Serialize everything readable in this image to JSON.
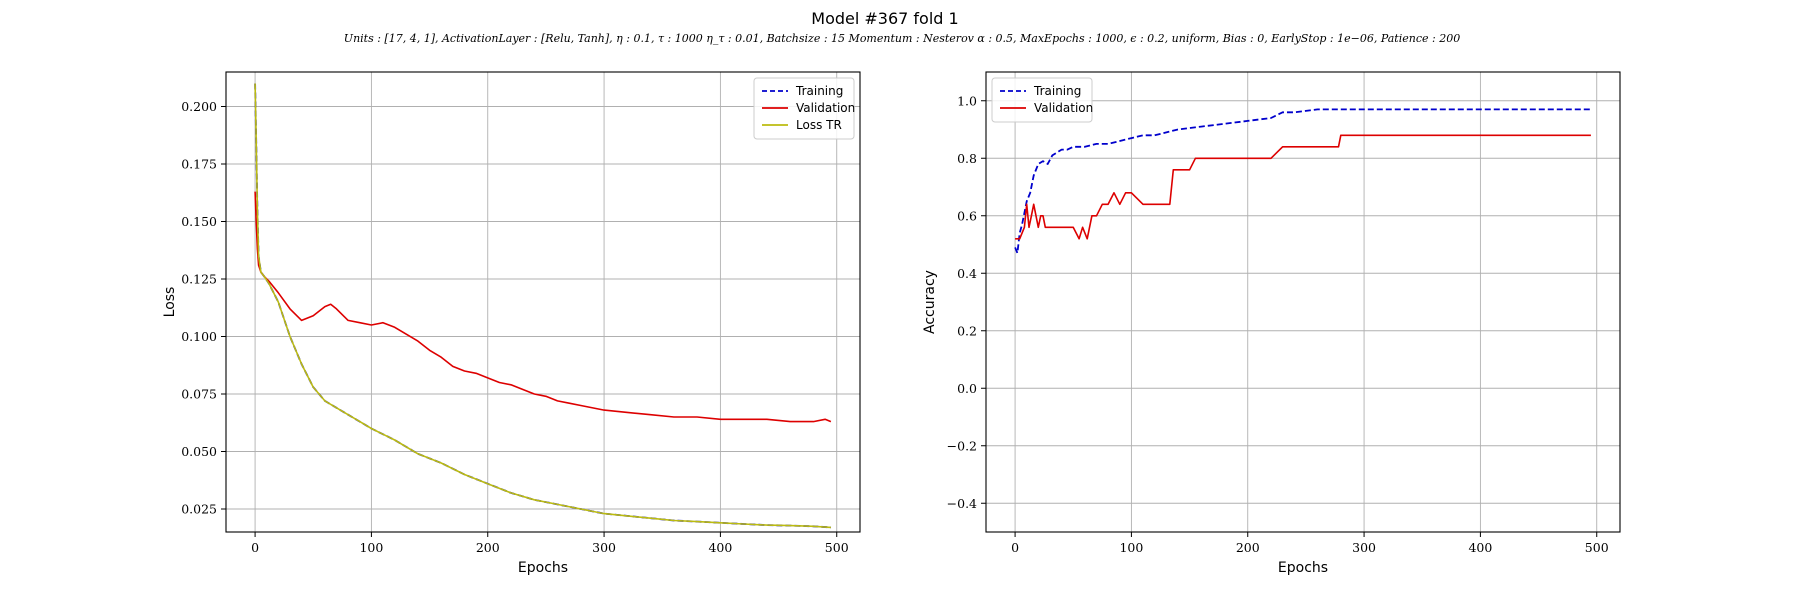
{
  "figure": {
    "title": "Model #367 fold 1",
    "subtitle": "Units : [17, 4, 1], ActivationLayer : [Relu, Tanh], η : 0.1, τ : 1000 η_τ : 0.01, Batchsize : 15 Momentum : Nesterov α : 0.5, MaxEpochs : 1000, ϵ : 0.2, uniform, Bias : 0, EarlyStop : 1e−06, Patience : 200"
  },
  "chart_data": [
    {
      "type": "line",
      "xlabel": "Epochs",
      "ylabel": "Loss",
      "xlim": [
        -25,
        520
      ],
      "ylim": [
        0.015,
        0.215
      ],
      "xticks": [
        0,
        100,
        200,
        300,
        400,
        500
      ],
      "yticks": [
        0.025,
        0.05,
        0.075,
        0.1,
        0.125,
        0.15,
        0.175,
        0.2
      ],
      "ytick_labels": [
        "0.025",
        "0.050",
        "0.075",
        "0.100",
        "0.125",
        "0.150",
        "0.175",
        "0.200"
      ],
      "grid": true,
      "legend_position": "top-right",
      "series": [
        {
          "name": "Training",
          "color": "#0000cc",
          "style": "dashed",
          "x": [
            0,
            1,
            2,
            3,
            5,
            8,
            12,
            20,
            30,
            40,
            50,
            60,
            70,
            80,
            90,
            100,
            120,
            140,
            160,
            180,
            200,
            220,
            240,
            260,
            280,
            300,
            320,
            340,
            360,
            380,
            400,
            420,
            440,
            460,
            480,
            495
          ],
          "y": [
            0.21,
            0.185,
            0.155,
            0.135,
            0.128,
            0.126,
            0.123,
            0.115,
            0.1,
            0.088,
            0.078,
            0.072,
            0.069,
            0.066,
            0.063,
            0.06,
            0.055,
            0.049,
            0.045,
            0.04,
            0.036,
            0.032,
            0.029,
            0.027,
            0.025,
            0.023,
            0.022,
            0.021,
            0.02,
            0.0195,
            0.019,
            0.0185,
            0.018,
            0.0178,
            0.0175,
            0.017
          ]
        },
        {
          "name": "Validation",
          "color": "#dd0000",
          "style": "solid",
          "x": [
            0,
            1,
            2,
            3,
            5,
            8,
            12,
            20,
            30,
            40,
            50,
            60,
            65,
            70,
            80,
            90,
            100,
            110,
            120,
            130,
            140,
            150,
            160,
            170,
            180,
            190,
            200,
            210,
            220,
            230,
            240,
            250,
            260,
            270,
            280,
            300,
            320,
            340,
            360,
            380,
            400,
            420,
            440,
            460,
            480,
            490,
            495
          ],
          "y": [
            0.163,
            0.15,
            0.138,
            0.131,
            0.128,
            0.126,
            0.124,
            0.119,
            0.112,
            0.107,
            0.109,
            0.113,
            0.114,
            0.112,
            0.107,
            0.106,
            0.105,
            0.106,
            0.104,
            0.101,
            0.098,
            0.094,
            0.091,
            0.087,
            0.085,
            0.084,
            0.082,
            0.08,
            0.079,
            0.077,
            0.075,
            0.074,
            0.072,
            0.071,
            0.07,
            0.068,
            0.067,
            0.066,
            0.065,
            0.065,
            0.064,
            0.064,
            0.064,
            0.063,
            0.063,
            0.064,
            0.063
          ]
        },
        {
          "name": "Loss TR",
          "color": "#bbbb11",
          "style": "solid",
          "x": [
            0,
            1,
            2,
            3,
            5,
            8,
            12,
            20,
            30,
            40,
            50,
            60,
            70,
            80,
            90,
            100,
            120,
            140,
            160,
            180,
            200,
            220,
            240,
            260,
            280,
            300,
            320,
            340,
            360,
            380,
            400,
            420,
            440,
            460,
            480,
            495
          ],
          "y": [
            0.21,
            0.185,
            0.155,
            0.135,
            0.128,
            0.126,
            0.123,
            0.115,
            0.1,
            0.088,
            0.078,
            0.072,
            0.069,
            0.066,
            0.063,
            0.06,
            0.055,
            0.049,
            0.045,
            0.04,
            0.036,
            0.032,
            0.029,
            0.027,
            0.025,
            0.023,
            0.022,
            0.021,
            0.02,
            0.0195,
            0.019,
            0.0185,
            0.018,
            0.0178,
            0.0175,
            0.017
          ]
        }
      ]
    },
    {
      "type": "line",
      "xlabel": "Epochs",
      "ylabel": "Accuracy",
      "xlim": [
        -25,
        520
      ],
      "ylim": [
        -0.5,
        1.1
      ],
      "xticks": [
        0,
        100,
        200,
        300,
        400,
        500
      ],
      "yticks": [
        -0.4,
        -0.2,
        0.0,
        0.2,
        0.4,
        0.6,
        0.8,
        1.0
      ],
      "ytick_labels": [
        "−0.4",
        "−0.2",
        "0.0",
        "0.2",
        "0.4",
        "0.6",
        "0.8",
        "1.0"
      ],
      "grid": true,
      "legend_position": "top-left",
      "series": [
        {
          "name": "Training",
          "color": "#0000cc",
          "style": "dashed",
          "x": [
            0,
            2,
            4,
            6,
            8,
            10,
            13,
            16,
            20,
            24,
            28,
            32,
            36,
            40,
            45,
            50,
            60,
            70,
            80,
            90,
            100,
            110,
            120,
            140,
            160,
            180,
            200,
            220,
            230,
            240,
            260,
            280,
            300,
            350,
            400,
            450,
            495
          ],
          "y": [
            0.49,
            0.47,
            0.54,
            0.57,
            0.61,
            0.65,
            0.68,
            0.74,
            0.78,
            0.79,
            0.78,
            0.81,
            0.82,
            0.83,
            0.83,
            0.84,
            0.84,
            0.85,
            0.85,
            0.86,
            0.87,
            0.88,
            0.88,
            0.9,
            0.91,
            0.92,
            0.93,
            0.94,
            0.96,
            0.96,
            0.97,
            0.97,
            0.97,
            0.97,
            0.97,
            0.97,
            0.97
          ]
        },
        {
          "name": "Validation",
          "color": "#dd0000",
          "style": "solid",
          "x": [
            0,
            4,
            8,
            10,
            12,
            14,
            16,
            18,
            20,
            22,
            24,
            26,
            30,
            35,
            40,
            50,
            55,
            58,
            62,
            66,
            70,
            75,
            80,
            85,
            90,
            95,
            100,
            110,
            120,
            133,
            136,
            140,
            150,
            155,
            160,
            170,
            180,
            200,
            220,
            230,
            240,
            260,
            278,
            280,
            300,
            350,
            400,
            450,
            495
          ],
          "y": [
            0.52,
            0.52,
            0.56,
            0.64,
            0.56,
            0.6,
            0.64,
            0.6,
            0.56,
            0.6,
            0.6,
            0.56,
            0.56,
            0.56,
            0.56,
            0.56,
            0.52,
            0.56,
            0.52,
            0.6,
            0.6,
            0.64,
            0.64,
            0.68,
            0.64,
            0.68,
            0.68,
            0.64,
            0.64,
            0.64,
            0.76,
            0.76,
            0.76,
            0.8,
            0.8,
            0.8,
            0.8,
            0.8,
            0.8,
            0.84,
            0.84,
            0.84,
            0.84,
            0.88,
            0.88,
            0.88,
            0.88,
            0.88,
            0.88
          ]
        }
      ]
    }
  ]
}
